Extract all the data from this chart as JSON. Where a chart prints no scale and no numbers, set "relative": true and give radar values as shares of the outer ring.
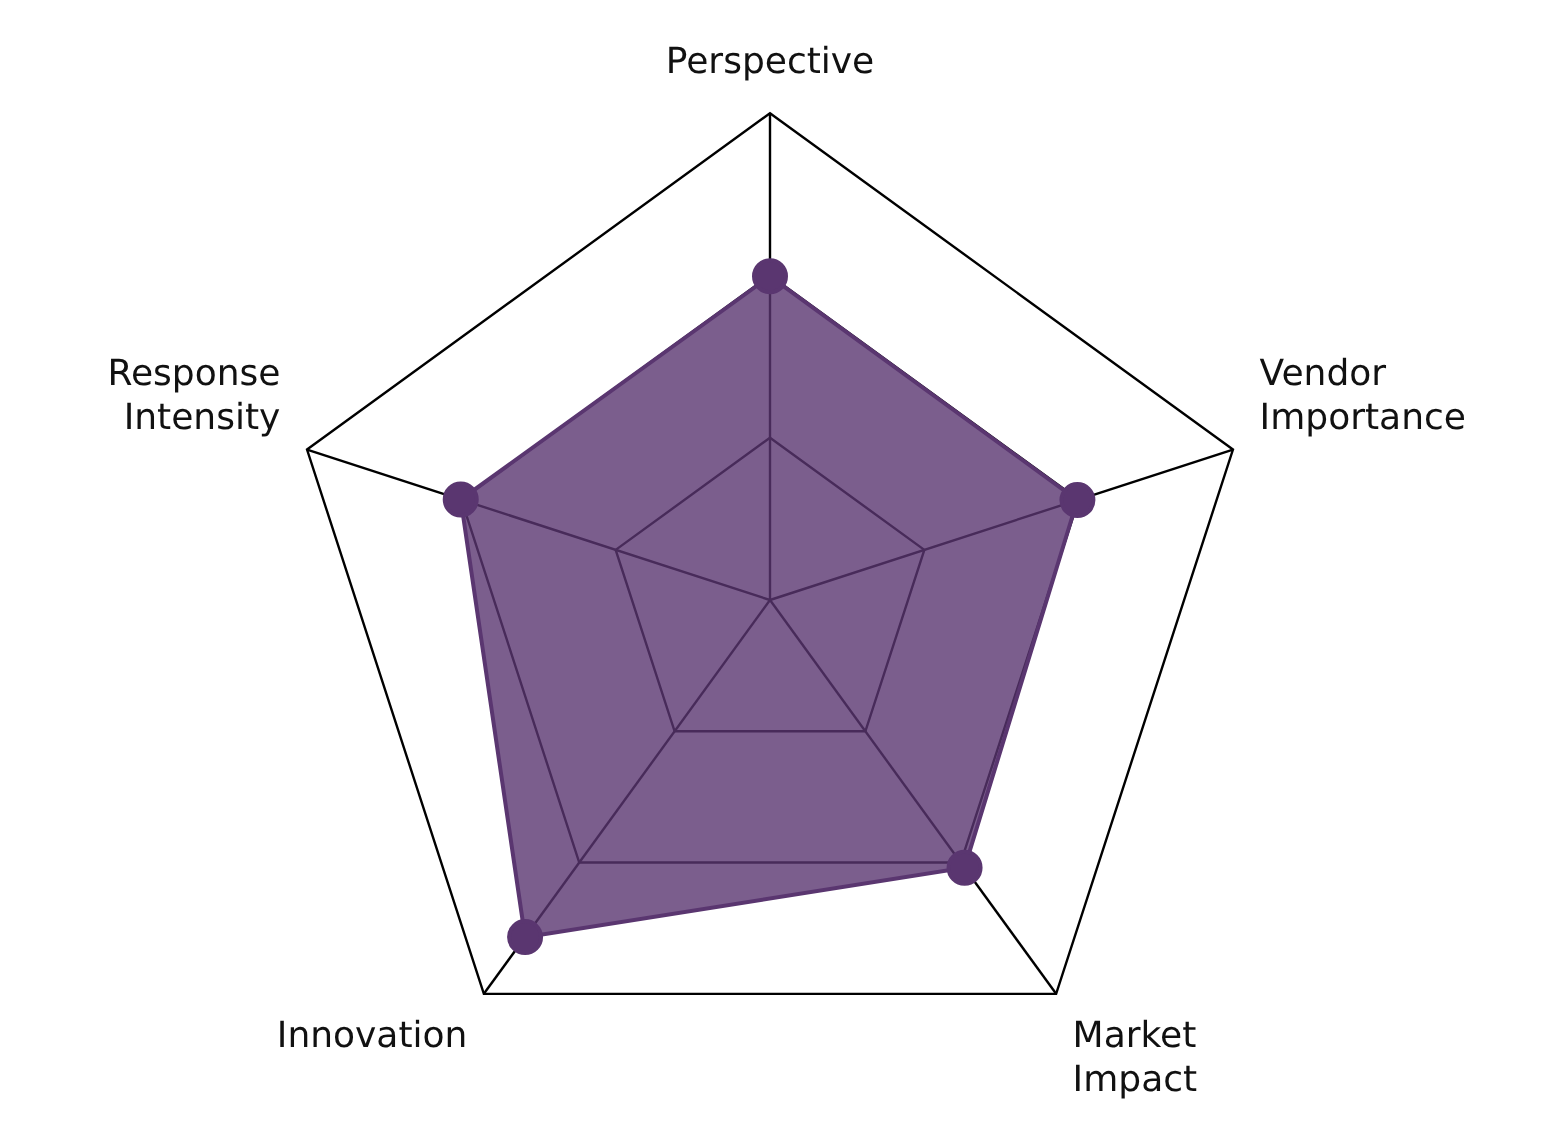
{
  "chart_data": {
    "type": "radar",
    "categories": [
      "Perspective",
      "Vendor Importance",
      "Market Impact",
      "Innovation",
      "Response Intensity"
    ],
    "relative": true,
    "grid": true,
    "legend": false,
    "marker": "circle",
    "series": [
      {
        "color": "#5a3670",
        "values": [
          0.665,
          0.664,
          0.68,
          0.856,
          0.668
        ]
      }
    ]
  }
}
